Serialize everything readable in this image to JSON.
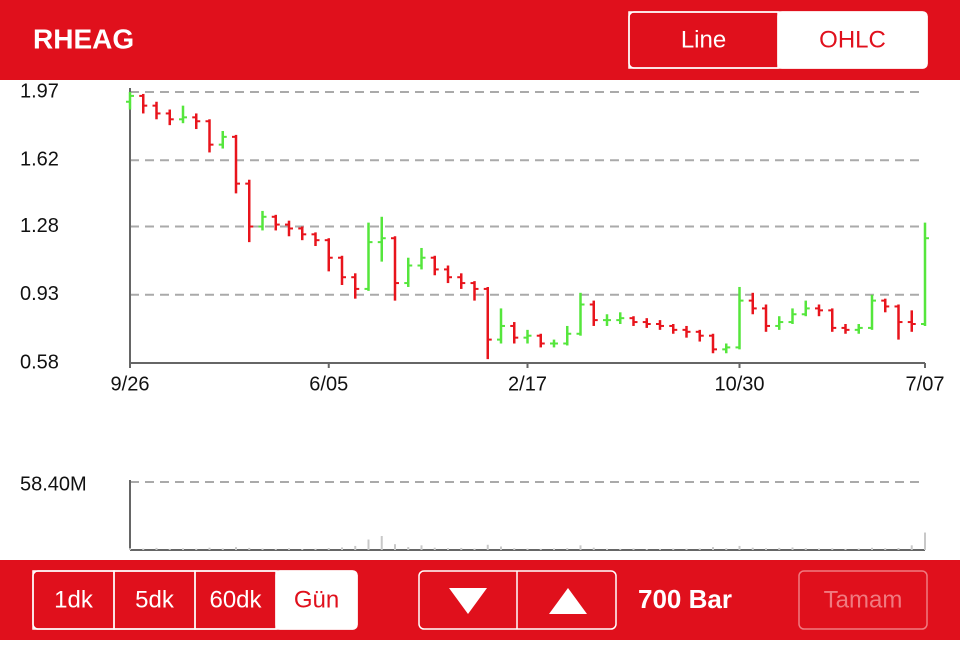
{
  "header": {
    "title": "RHEAG",
    "chart_modes": [
      "Line",
      "OHLC"
    ],
    "selected_mode": 1
  },
  "chart_data": [
    {
      "type": "ohlc",
      "categories": [
        "9/26",
        null,
        null,
        null,
        null,
        null,
        null,
        null,
        null,
        null,
        null,
        null,
        null,
        null,
        null,
        "6/05",
        null,
        null,
        null,
        null,
        null,
        null,
        null,
        null,
        null,
        null,
        null,
        null,
        null,
        null,
        "2/17",
        null,
        null,
        null,
        null,
        null,
        null,
        null,
        null,
        null,
        null,
        null,
        null,
        null,
        null,
        null,
        "10/30",
        null,
        null,
        null,
        null,
        null,
        null,
        null,
        null,
        null,
        null,
        null,
        null,
        null,
        "7/07"
      ],
      "series": [
        {
          "open": [
            1.92,
            1.95,
            1.9,
            1.86,
            1.83,
            1.84,
            1.82,
            1.7,
            1.74,
            1.5,
            1.28,
            1.33,
            1.29,
            1.27,
            1.24,
            1.21,
            1.12,
            1.02,
            0.96,
            1.2,
            1.22,
            0.99,
            1.08,
            1.12,
            1.06,
            1.02,
            0.99,
            0.96,
            0.7,
            0.77,
            0.71,
            0.72,
            0.68,
            0.68,
            0.73,
            0.88,
            0.8,
            0.8,
            0.81,
            0.79,
            0.78,
            0.77,
            0.75,
            0.74,
            0.72,
            0.65,
            0.66,
            0.9,
            0.86,
            0.77,
            0.79,
            0.83,
            0.86,
            0.85,
            0.76,
            0.75,
            0.76,
            0.9,
            0.87,
            0.79,
            0.78
          ],
          "high": [
            1.97,
            1.96,
            1.92,
            1.88,
            1.9,
            1.86,
            1.83,
            1.77,
            1.75,
            1.52,
            1.36,
            1.34,
            1.31,
            1.28,
            1.25,
            1.22,
            1.13,
            1.04,
            1.3,
            1.33,
            1.23,
            1.12,
            1.17,
            1.13,
            1.08,
            1.04,
            1.0,
            0.97,
            0.86,
            0.79,
            0.75,
            0.73,
            0.7,
            0.77,
            0.94,
            0.9,
            0.83,
            0.84,
            0.82,
            0.81,
            0.8,
            0.78,
            0.77,
            0.75,
            0.73,
            0.68,
            0.97,
            0.94,
            0.88,
            0.82,
            0.86,
            0.9,
            0.88,
            0.86,
            0.78,
            0.78,
            0.93,
            0.91,
            0.88,
            0.85,
            1.3
          ],
          "low": [
            1.88,
            1.86,
            1.83,
            1.8,
            1.81,
            1.78,
            1.66,
            1.68,
            1.45,
            1.2,
            1.26,
            1.26,
            1.23,
            1.21,
            1.18,
            1.05,
            0.98,
            0.91,
            0.95,
            1.1,
            0.9,
            0.97,
            1.06,
            1.03,
            0.99,
            0.96,
            0.9,
            0.6,
            0.68,
            0.68,
            0.68,
            0.66,
            0.66,
            0.67,
            0.72,
            0.77,
            0.77,
            0.78,
            0.77,
            0.76,
            0.75,
            0.73,
            0.71,
            0.69,
            0.63,
            0.63,
            0.65,
            0.83,
            0.74,
            0.75,
            0.78,
            0.82,
            0.82,
            0.74,
            0.73,
            0.73,
            0.75,
            0.84,
            0.7,
            0.74,
            0.77
          ],
          "close": [
            1.95,
            1.9,
            1.86,
            1.83,
            1.84,
            1.82,
            1.7,
            1.74,
            1.5,
            1.28,
            1.33,
            1.29,
            1.27,
            1.24,
            1.21,
            1.12,
            1.02,
            0.96,
            1.2,
            1.22,
            0.99,
            1.08,
            1.12,
            1.06,
            1.02,
            0.99,
            0.96,
            0.7,
            0.77,
            0.71,
            0.72,
            0.68,
            0.68,
            0.73,
            0.88,
            0.8,
            0.8,
            0.81,
            0.79,
            0.78,
            0.77,
            0.75,
            0.74,
            0.72,
            0.65,
            0.66,
            0.9,
            0.86,
            0.77,
            0.79,
            0.83,
            0.86,
            0.85,
            0.76,
            0.75,
            0.76,
            0.9,
            0.87,
            0.79,
            0.78,
            1.22
          ]
        }
      ],
      "up_color": "#55e63c",
      "down_color": "#e8141c",
      "ylim": [
        0.58,
        1.97
      ],
      "yticks": [
        0.58,
        0.93,
        1.28,
        1.62,
        1.97
      ],
      "grid": true
    },
    {
      "type": "bar",
      "values": [
        1500000,
        1200000,
        1800000,
        1000000,
        1400000,
        1100000,
        2000000,
        1300000,
        2500000,
        1800000,
        1200000,
        1000000,
        1400000,
        900000,
        1100000,
        1600000,
        2200000,
        3500000,
        9000000,
        12000000,
        5000000,
        2500000,
        4000000,
        2000000,
        1500000,
        1800000,
        1200000,
        4500000,
        3000000,
        1500000,
        1200000,
        1000000,
        1300000,
        1600000,
        4000000,
        2000000,
        1100000,
        1000000,
        1300000,
        900000,
        1000000,
        1200000,
        1100000,
        1300000,
        2500000,
        1500000,
        3500000,
        2000000,
        1500000,
        1800000,
        2200000,
        1600000,
        1200000,
        1400000,
        1000000,
        1200000,
        1900000,
        1500000,
        1700000,
        4000000,
        15000000
      ],
      "color": "#c8c8c8",
      "ylim": [
        0,
        58400000
      ],
      "yticks": [
        {
          "value": 58400000,
          "label": "58.40M"
        }
      ],
      "grid": true
    }
  ],
  "toolbar": {
    "intervals": [
      "1dk",
      "5dk",
      "60dk",
      "Gün"
    ],
    "selected_interval": 3,
    "bar_count_label": "700 Bar",
    "done_button": "Tamam"
  }
}
